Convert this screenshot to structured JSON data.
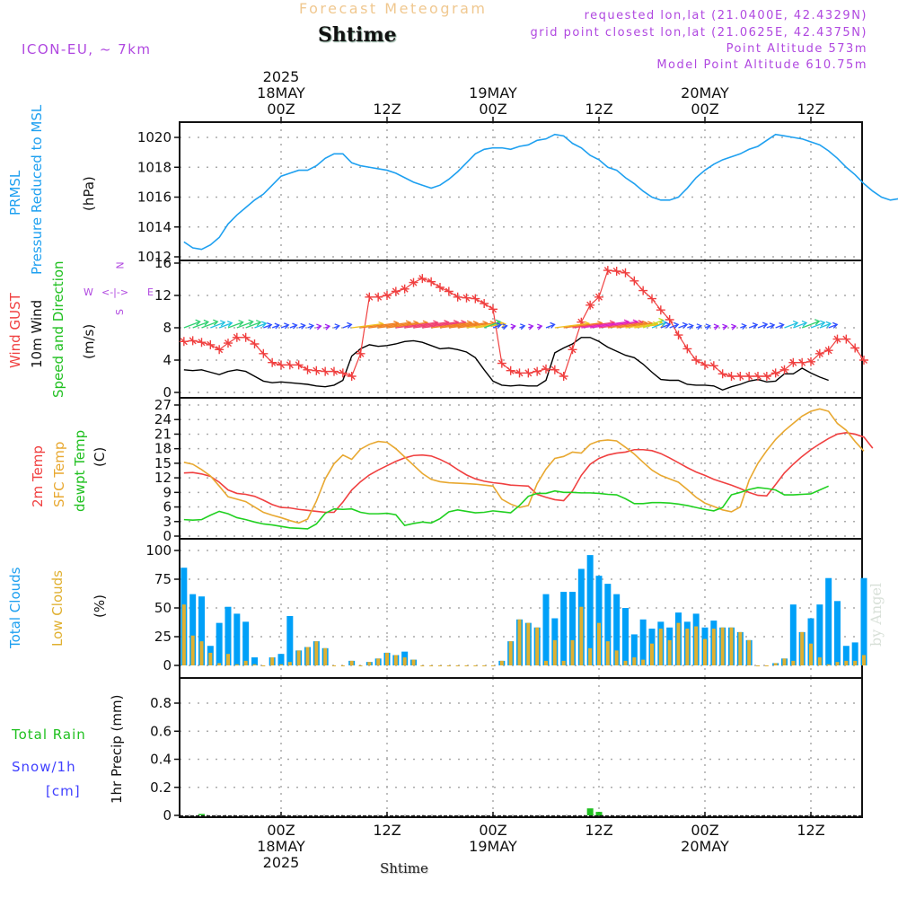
{
  "header": {
    "forecast_title": "Forecast Meteogram",
    "location": "Shtime",
    "model": "ICON-EU, ~ 7km",
    "requested": "requested lon,lat (21.0400E, 42.4329N)",
    "grid_point": "grid point closest lon,lat (21.0625E, 42.4375N)",
    "point_altitude": "Point Altitude 573m",
    "model_altitude": "Model Point Altitude 610.75m",
    "watermark": "by Angel",
    "footer_location": "Shtime"
  },
  "colors": {
    "pressure": "#1ea0f0",
    "gust": "#f04040",
    "wind10m": "#000000",
    "temp2m": "#f04040",
    "sfc_temp": "#e8a830",
    "dewpoint": "#20d020",
    "total_clouds": "#00a0f8",
    "low_clouds": "#e0b030",
    "rain": "#20c020",
    "snow": "#4040ff",
    "meta": "#b048e0"
  },
  "time_axis": {
    "top_labels": [
      {
        "h": 0,
        "lines": [
          "2025",
          "18MAY",
          "00Z"
        ]
      },
      {
        "h": 12,
        "lines": [
          "12Z"
        ]
      },
      {
        "h": 24,
        "lines": [
          "19MAY",
          "00Z"
        ]
      },
      {
        "h": 36,
        "lines": [
          "12Z"
        ]
      },
      {
        "h": 48,
        "lines": [
          "20MAY",
          "00Z"
        ]
      },
      {
        "h": 60,
        "lines": [
          "12Z"
        ]
      }
    ],
    "bottom_labels": [
      {
        "h": 0,
        "lines": [
          "00Z",
          "18MAY",
          "2025"
        ]
      },
      {
        "h": 12,
        "lines": [
          "12Z"
        ]
      },
      {
        "h": 24,
        "lines": [
          "00Z",
          "19MAY"
        ]
      },
      {
        "h": 36,
        "lines": [
          "12Z"
        ]
      },
      {
        "h": 48,
        "lines": [
          "00Z",
          "20MAY"
        ]
      },
      {
        "h": 60,
        "lines": [
          "12Z"
        ]
      }
    ],
    "hour_range": [
      -11.5,
      65.8
    ]
  },
  "panel_labels": {
    "pressure": {
      "l1": "PRMSL",
      "l2": "Pressure Reduced to MSL",
      "unit": "(hPa)"
    },
    "wind": {
      "l1": "Wind GUST",
      "l2": "10m Wind",
      "l3": "Speed and Direction",
      "unit": "(m/s)",
      "compass": {
        "n": "N",
        "s": "S",
        "w": "W",
        "e": "E"
      }
    },
    "temp": {
      "l1": "2m Temp",
      "l2": "SFC Temp",
      "l3": "dewpt Temp",
      "unit": "(C)"
    },
    "clouds": {
      "l1": "Total Clouds",
      "l2": "Low Clouds",
      "unit": "(%)"
    },
    "precip": {
      "l1": "Total   Rain",
      "l2": "Snow/1h",
      "l3": "[cm]",
      "unit": "1hr Precip (mm)"
    }
  },
  "chart_data": [
    {
      "type": "line",
      "title": "PRMSL Pressure Reduced to MSL",
      "ylabel": "(hPa)",
      "ylim": [
        1012,
        1021
      ],
      "yticks": [
        1012,
        1014,
        1016,
        1018,
        1020
      ],
      "x_start_hour": -11,
      "series": [
        {
          "name": "PRMSL",
          "values": [
            1013.0,
            1012.6,
            1012.5,
            1012.8,
            1013.3,
            1014.2,
            1014.8,
            1015.3,
            1015.8,
            1016.2,
            1016.8,
            1017.4,
            1017.6,
            1017.8,
            1017.8,
            1018.1,
            1018.6,
            1018.9,
            1018.9,
            1018.3,
            1018.1,
            1018.0,
            1017.9,
            1017.8,
            1017.6,
            1017.3,
            1017.0,
            1016.8,
            1016.6,
            1016.8,
            1017.2,
            1017.7,
            1018.3,
            1018.9,
            1019.2,
            1019.3,
            1019.3,
            1019.2,
            1019.4,
            1019.5,
            1019.8,
            1019.9,
            1020.2,
            1020.1,
            1019.6,
            1019.3,
            1018.8,
            1018.5,
            1018.0,
            1017.8,
            1017.3,
            1016.9,
            1016.4,
            1016.0,
            1015.8,
            1015.8,
            1016.0,
            1016.6,
            1017.3,
            1017.8,
            1018.2,
            1018.5,
            1018.7,
            1018.9,
            1019.2,
            1019.4,
            1019.8,
            1020.2,
            1020.1,
            1020.0,
            1019.9,
            1019.7,
            1019.5,
            1019.1,
            1018.6,
            1018.0,
            1017.5,
            1016.9,
            1016.4,
            1016.0,
            1015.8,
            1015.9
          ]
        }
      ]
    },
    {
      "type": "line",
      "title": "Wind GUST / 10m Wind Speed and Direction",
      "ylabel": "(m/s)",
      "ylim": [
        0,
        16.5
      ],
      "yticks": [
        0,
        4,
        8,
        12,
        16
      ],
      "x_start_hour": -11,
      "series": [
        {
          "name": "Wind GUST",
          "values": [
            6.3,
            6.4,
            6.2,
            5.9,
            5.3,
            6.1,
            6.8,
            6.8,
            6.0,
            4.8,
            3.7,
            3.4,
            3.4,
            3.4,
            2.8,
            2.7,
            2.6,
            2.6,
            2.4,
            2.0,
            4.8,
            11.8,
            11.8,
            12.0,
            12.5,
            12.8,
            13.6,
            14.1,
            13.7,
            13.0,
            12.5,
            11.8,
            11.7,
            11.6,
            11.0,
            10.3,
            3.6,
            2.7,
            2.4,
            2.4,
            2.6,
            2.9,
            2.8,
            2.0,
            5.3,
            8.7,
            10.8,
            11.8,
            15.1,
            15.0,
            14.8,
            13.8,
            12.6,
            11.6,
            10.2,
            9.0,
            7.1,
            5.4,
            4.0,
            3.4,
            3.3,
            2.3,
            2.0,
            2.0,
            2.0,
            2.0,
            2.0,
            2.4,
            2.8,
            3.7,
            3.7,
            3.8,
            4.8,
            5.2,
            6.6,
            6.6,
            5.5,
            4.0
          ]
        },
        {
          "name": "10m Wind",
          "values": [
            2.8,
            2.7,
            2.8,
            2.5,
            2.2,
            2.6,
            2.8,
            2.6,
            2.0,
            1.4,
            1.2,
            1.3,
            1.2,
            1.1,
            1.0,
            0.8,
            0.7,
            0.9,
            1.5,
            4.5,
            5.4,
            5.9,
            5.7,
            5.8,
            6.0,
            6.3,
            6.4,
            6.2,
            5.8,
            5.4,
            5.5,
            5.3,
            5.0,
            4.3,
            2.8,
            1.4,
            0.9,
            0.8,
            0.9,
            0.8,
            0.8,
            1.5,
            4.9,
            5.5,
            6.0,
            6.8,
            6.8,
            6.3,
            5.6,
            5.1,
            4.6,
            4.3,
            3.5,
            2.5,
            1.6,
            1.5,
            1.5,
            1.0,
            0.9,
            0.9,
            0.8,
            0.3,
            0.7,
            1.0,
            1.4,
            1.6,
            1.3,
            1.4,
            2.3,
            2.3,
            3.0,
            2.4,
            1.9,
            1.5
          ]
        }
      ],
      "wind_arrow_speed_band": "barbs drawn along 8 m/s line, colored by speed"
    },
    {
      "type": "line",
      "title": "2m Temp / SFC Temp / dewpt Temp",
      "ylabel": "(C)",
      "ylim": [
        0,
        27.5
      ],
      "yticks": [
        0,
        3,
        6,
        9,
        12,
        15,
        18,
        21,
        24,
        27
      ],
      "x_start_hour": -11,
      "series": [
        {
          "name": "2m Temp",
          "values": [
            13.0,
            13.1,
            12.8,
            12.3,
            11.1,
            9.5,
            8.8,
            8.6,
            8.2,
            7.4,
            6.5,
            5.9,
            5.8,
            5.5,
            5.3,
            5.1,
            4.9,
            4.9,
            7.0,
            9.5,
            11.2,
            12.6,
            13.6,
            14.5,
            15.4,
            16.1,
            16.6,
            16.7,
            16.5,
            15.8,
            14.9,
            13.7,
            12.6,
            11.8,
            11.3,
            11.0,
            10.8,
            10.5,
            10.4,
            10.3,
            8.6,
            8.0,
            7.5,
            7.3,
            9.3,
            12.5,
            14.8,
            16.0,
            16.7,
            17.1,
            17.3,
            17.8,
            17.8,
            17.6,
            17.0,
            16.1,
            15.1,
            14.1,
            13.2,
            12.5,
            11.7,
            11.1,
            10.5,
            9.8,
            9.0,
            8.4,
            8.3,
            10.6,
            13.0,
            14.8,
            16.4,
            17.8,
            19.0,
            20.1,
            21.0,
            21.3,
            21.0,
            20.4,
            18.1
          ]
        },
        {
          "name": "SFC Temp",
          "values": [
            15.2,
            14.8,
            13.7,
            12.4,
            10.3,
            8.1,
            7.6,
            7.1,
            6.0,
            4.9,
            4.3,
            3.8,
            3.2,
            2.7,
            3.5,
            7.2,
            11.8,
            14.9,
            16.7,
            15.8,
            17.9,
            18.9,
            19.5,
            19.3,
            18.0,
            16.3,
            14.6,
            12.9,
            11.7,
            11.2,
            11.0,
            10.9,
            10.8,
            10.7,
            10.5,
            10.3,
            7.6,
            6.6,
            5.9,
            6.3,
            10.8,
            13.8,
            16.0,
            16.4,
            17.3,
            17.1,
            18.9,
            19.6,
            19.8,
            19.6,
            18.3,
            16.9,
            15.2,
            13.6,
            12.5,
            11.8,
            11.1,
            9.6,
            8.0,
            6.8,
            6.1,
            5.4,
            5.0,
            6.0,
            11.5,
            15.0,
            17.6,
            19.9,
            21.7,
            23.2,
            24.7,
            25.7,
            26.2,
            25.7,
            23.2,
            21.8,
            19.5,
            17.5
          ]
        },
        {
          "name": "dewpt Temp",
          "values": [
            3.4,
            3.3,
            3.4,
            4.3,
            5.1,
            4.6,
            3.8,
            3.4,
            2.9,
            2.5,
            2.3,
            2.0,
            1.7,
            1.6,
            1.5,
            2.5,
            4.7,
            5.6,
            5.5,
            5.6,
            4.9,
            4.6,
            4.6,
            4.7,
            4.4,
            2.2,
            2.6,
            2.9,
            2.7,
            3.6,
            5.0,
            5.4,
            5.1,
            4.8,
            4.9,
            5.2,
            5.0,
            4.8,
            6.3,
            8.2,
            8.8,
            8.8,
            9.3,
            9.0,
            9.0,
            8.9,
            8.9,
            8.8,
            8.6,
            8.5,
            7.7,
            6.7,
            6.7,
            6.9,
            6.9,
            6.8,
            6.6,
            6.3,
            5.9,
            5.5,
            5.2,
            5.9,
            8.5,
            9.0,
            9.6,
            10.0,
            9.8,
            9.5,
            8.5,
            8.5,
            8.6,
            8.7,
            9.5,
            10.3
          ]
        }
      ]
    },
    {
      "type": "bar",
      "title": "Total Clouds / Low Clouds",
      "ylabel": "(%)",
      "ylim": [
        0,
        105
      ],
      "yticks": [
        0,
        25,
        50,
        75,
        100
      ],
      "x_start_hour": -11,
      "series": [
        {
          "name": "Total Clouds",
          "values": [
            85,
            62,
            60,
            17,
            37,
            51,
            45,
            38,
            7,
            0,
            7,
            10,
            43,
            13,
            16,
            21,
            15,
            0,
            0,
            4,
            0,
            3,
            6,
            11,
            9,
            12,
            5,
            0,
            0,
            0,
            0,
            0,
            0,
            0,
            0,
            0,
            4,
            21,
            40,
            37,
            33,
            62,
            41,
            64,
            64,
            84,
            96,
            78,
            71,
            62,
            50,
            27,
            40,
            32,
            38,
            33,
            46,
            38,
            45,
            33,
            39,
            33,
            33,
            29,
            22,
            0,
            0,
            2,
            6,
            53,
            29,
            41,
            53,
            76,
            56,
            17,
            20,
            76
          ]
        },
        {
          "name": "Low Clouds",
          "values": [
            53,
            26,
            21,
            11,
            2,
            10,
            1,
            4,
            1,
            0,
            7,
            1,
            3,
            13,
            16,
            21,
            15,
            0,
            0,
            4,
            0,
            3,
            6,
            11,
            9,
            7,
            5,
            0,
            0,
            0,
            0,
            0,
            0,
            0,
            0,
            0,
            4,
            21,
            40,
            37,
            33,
            4,
            22,
            4,
            22,
            51,
            15,
            37,
            21,
            13,
            4,
            7,
            5,
            19,
            32,
            22,
            37,
            32,
            34,
            23,
            32,
            33,
            33,
            29,
            22,
            0,
            0,
            2,
            6,
            4,
            29,
            19,
            7,
            1,
            3,
            4,
            4,
            9
          ]
        }
      ]
    },
    {
      "type": "bar",
      "title": "1hr Precip (mm)",
      "ylabel": "1hr Precip (mm)",
      "ylim": [
        0,
        0.98
      ],
      "yticks": [
        0,
        0.2,
        0.4,
        0.6,
        0.8
      ],
      "x_start_hour": -11,
      "series": [
        {
          "name": "Total Rain",
          "values": [
            0,
            0,
            0.01,
            0,
            0,
            0,
            0,
            0,
            0,
            0,
            0,
            0,
            0,
            0,
            0,
            0,
            0,
            0,
            0,
            0,
            0,
            0,
            0,
            0,
            0,
            0,
            0,
            0,
            0,
            0,
            0,
            0,
            0,
            0,
            0,
            0,
            0,
            0,
            0,
            0,
            0,
            0,
            0,
            0,
            0,
            0,
            0.05,
            0.025,
            0,
            0,
            0,
            0,
            0,
            0,
            0,
            0,
            0,
            0,
            0,
            0,
            0,
            0,
            0,
            0,
            0,
            0,
            0,
            0,
            0,
            0,
            0,
            0,
            0,
            0,
            0,
            0,
            0
          ]
        },
        {
          "name": "Snow/1h",
          "values": []
        }
      ]
    }
  ]
}
